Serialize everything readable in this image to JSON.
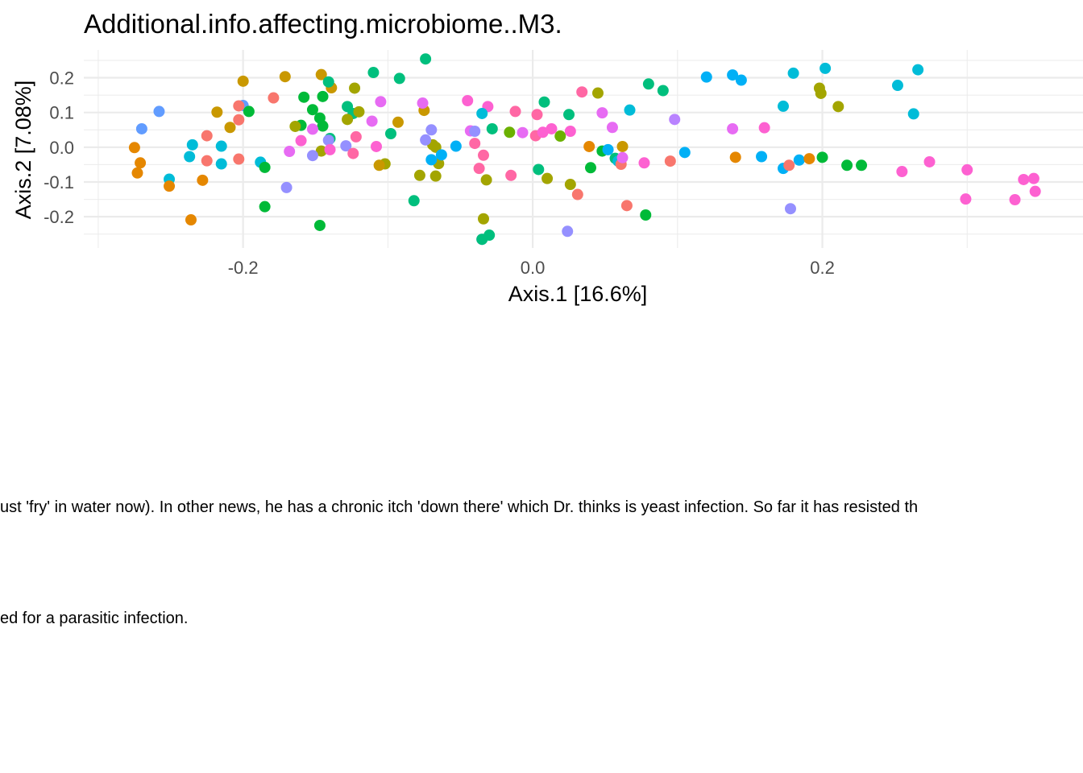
{
  "chart_data": {
    "type": "scatter",
    "title": "Additional.info.affecting.microbiome..M3.",
    "xlabel": "Axis.1 [16.6%]",
    "ylabel": "Axis.2 [7.08%]",
    "xlim": [
      -0.31,
      0.38
    ],
    "ylim": [
      -0.29,
      0.28
    ],
    "x_ticks": [
      -0.2,
      0.0,
      0.2
    ],
    "x_tick_labels": [
      "-0.2",
      "0.0",
      "0.2"
    ],
    "y_ticks": [
      -0.2,
      -0.1,
      0.0,
      0.1,
      0.2
    ],
    "y_tick_labels": [
      "-0.2",
      "-0.1",
      "0.0",
      "0.1",
      "0.2"
    ],
    "grid": true,
    "colors": [
      "#F8766D",
      "#E58700",
      "#C99800",
      "#A3A500",
      "#6BB100",
      "#00BA38",
      "#00BF7D",
      "#00C0AF",
      "#00BCD8",
      "#00B0F6",
      "#619CFF",
      "#B983FF",
      "#E76BF3",
      "#FD61D1",
      "#FF67A4"
    ],
    "points": [
      {
        "x": -0.27,
        "y": 0.053,
        "color": "#619CFF"
      },
      {
        "x": -0.258,
        "y": 0.103,
        "color": "#619CFF"
      },
      {
        "x": -0.251,
        "y": -0.092,
        "color": "#00BCD8"
      },
      {
        "x": -0.237,
        "y": -0.027,
        "color": "#00BCD8"
      },
      {
        "x": -0.235,
        "y": 0.007,
        "color": "#00BCD8"
      },
      {
        "x": -0.215,
        "y": 0.003,
        "color": "#00BCD8"
      },
      {
        "x": -0.215,
        "y": -0.048,
        "color": "#00BCD8"
      },
      {
        "x": -0.2,
        "y": 0.12,
        "color": "#619CFF"
      },
      {
        "x": -0.188,
        "y": -0.043,
        "color": "#00BCD8"
      },
      {
        "x": -0.275,
        "y": -0.001,
        "color": "#E58700"
      },
      {
        "x": -0.271,
        "y": -0.045,
        "color": "#E58700"
      },
      {
        "x": -0.273,
        "y": -0.074,
        "color": "#E58700"
      },
      {
        "x": -0.251,
        "y": -0.112,
        "color": "#E58700"
      },
      {
        "x": -0.236,
        "y": -0.209,
        "color": "#E58700"
      },
      {
        "x": -0.228,
        "y": -0.095,
        "color": "#E58700"
      },
      {
        "x": -0.225,
        "y": 0.033,
        "color": "#F8766D"
      },
      {
        "x": -0.225,
        "y": -0.039,
        "color": "#F8766D"
      },
      {
        "x": -0.203,
        "y": 0.079,
        "color": "#F8766D"
      },
      {
        "x": -0.203,
        "y": -0.034,
        "color": "#F8766D"
      },
      {
        "x": -0.203,
        "y": 0.119,
        "color": "#F8766D"
      },
      {
        "x": -0.179,
        "y": 0.142,
        "color": "#F8766D"
      },
      {
        "x": -0.218,
        "y": 0.101,
        "color": "#C99800"
      },
      {
        "x": -0.209,
        "y": 0.057,
        "color": "#C99800"
      },
      {
        "x": -0.2,
        "y": 0.19,
        "color": "#C99800"
      },
      {
        "x": -0.171,
        "y": 0.203,
        "color": "#C99800"
      },
      {
        "x": -0.146,
        "y": 0.209,
        "color": "#C99800"
      },
      {
        "x": -0.139,
        "y": 0.171,
        "color": "#C99800"
      },
      {
        "x": -0.196,
        "y": 0.103,
        "color": "#00BA38"
      },
      {
        "x": -0.185,
        "y": -0.058,
        "color": "#00BA38"
      },
      {
        "x": -0.185,
        "y": -0.171,
        "color": "#00BA38"
      },
      {
        "x": -0.16,
        "y": 0.063,
        "color": "#00BA38"
      },
      {
        "x": -0.158,
        "y": 0.144,
        "color": "#00BA38"
      },
      {
        "x": -0.152,
        "y": 0.108,
        "color": "#00BA38"
      },
      {
        "x": -0.147,
        "y": 0.084,
        "color": "#00BA38"
      },
      {
        "x": -0.145,
        "y": 0.146,
        "color": "#00BA38"
      },
      {
        "x": -0.145,
        "y": 0.061,
        "color": "#00BA38"
      },
      {
        "x": -0.147,
        "y": -0.225,
        "color": "#00BA38"
      },
      {
        "x": -0.141,
        "y": 0.188,
        "color": "#00BF7D"
      },
      {
        "x": -0.14,
        "y": 0.025,
        "color": "#00BF7D"
      },
      {
        "x": -0.128,
        "y": 0.117,
        "color": "#00BF7D"
      },
      {
        "x": -0.124,
        "y": 0.097,
        "color": "#00BF7D"
      },
      {
        "x": -0.11,
        "y": 0.215,
        "color": "#00BF7D"
      },
      {
        "x": -0.098,
        "y": 0.039,
        "color": "#00BF7D"
      },
      {
        "x": -0.092,
        "y": 0.198,
        "color": "#00BF7D"
      },
      {
        "x": -0.082,
        "y": -0.154,
        "color": "#00BF7D"
      },
      {
        "x": -0.074,
        "y": 0.254,
        "color": "#00BF7D"
      },
      {
        "x": -0.164,
        "y": 0.06,
        "color": "#A3A500"
      },
      {
        "x": -0.146,
        "y": -0.011,
        "color": "#A3A500"
      },
      {
        "x": -0.128,
        "y": 0.08,
        "color": "#A3A500"
      },
      {
        "x": -0.123,
        "y": 0.17,
        "color": "#A3A500"
      },
      {
        "x": -0.12,
        "y": 0.102,
        "color": "#A3A500"
      },
      {
        "x": -0.102,
        "y": -0.048,
        "color": "#A3A500"
      },
      {
        "x": -0.078,
        "y": -0.081,
        "color": "#A3A500"
      },
      {
        "x": -0.069,
        "y": 0.007,
        "color": "#A3A500"
      },
      {
        "x": -0.067,
        "y": -0.083,
        "color": "#A3A500"
      },
      {
        "x": -0.065,
        "y": -0.047,
        "color": "#A3A500"
      },
      {
        "x": -0.067,
        "y": 0.0,
        "color": "#A3A500"
      },
      {
        "x": -0.034,
        "y": -0.206,
        "color": "#A3A500"
      },
      {
        "x": -0.032,
        "y": -0.094,
        "color": "#A3A500"
      },
      {
        "x": -0.106,
        "y": -0.052,
        "color": "#C99800"
      },
      {
        "x": -0.093,
        "y": 0.072,
        "color": "#C99800"
      },
      {
        "x": -0.075,
        "y": 0.106,
        "color": "#C99800"
      },
      {
        "x": -0.17,
        "y": -0.116,
        "color": "#9590FF"
      },
      {
        "x": -0.141,
        "y": 0.02,
        "color": "#9590FF"
      },
      {
        "x": -0.152,
        "y": -0.024,
        "color": "#9590FF"
      },
      {
        "x": -0.129,
        "y": 0.004,
        "color": "#9590FF"
      },
      {
        "x": -0.074,
        "y": 0.021,
        "color": "#9590FF"
      },
      {
        "x": -0.07,
        "y": 0.05,
        "color": "#9590FF"
      },
      {
        "x": -0.035,
        "y": -0.265,
        "color": "#9590FF"
      },
      {
        "x": -0.168,
        "y": -0.012,
        "color": "#E76BF3"
      },
      {
        "x": -0.152,
        "y": 0.052,
        "color": "#E76BF3"
      },
      {
        "x": -0.111,
        "y": 0.075,
        "color": "#E76BF3"
      },
      {
        "x": -0.105,
        "y": 0.131,
        "color": "#E76BF3"
      },
      {
        "x": -0.076,
        "y": 0.127,
        "color": "#E76BF3"
      },
      {
        "x": -0.043,
        "y": 0.047,
        "color": "#E76BF3"
      },
      {
        "x": -0.16,
        "y": 0.019,
        "color": "#FD61D1"
      },
      {
        "x": -0.14,
        "y": -0.007,
        "color": "#FD61D1"
      },
      {
        "x": -0.108,
        "y": 0.002,
        "color": "#FD61D1"
      },
      {
        "x": -0.045,
        "y": 0.134,
        "color": "#FD61D1"
      },
      {
        "x": -0.031,
        "y": 0.117,
        "color": "#FD61D1"
      },
      {
        "x": -0.124,
        "y": -0.018,
        "color": "#FF67A4"
      },
      {
        "x": -0.122,
        "y": 0.03,
        "color": "#FF67A4"
      },
      {
        "x": -0.04,
        "y": 0.011,
        "color": "#FF67A4"
      },
      {
        "x": -0.037,
        "y": -0.061,
        "color": "#FF67A4"
      },
      {
        "x": -0.034,
        "y": -0.023,
        "color": "#FF67A4"
      },
      {
        "x": -0.07,
        "y": -0.036,
        "color": "#00B0F6"
      },
      {
        "x": -0.063,
        "y": -0.022,
        "color": "#00B0F6"
      },
      {
        "x": -0.053,
        "y": 0.003,
        "color": "#00B0F6"
      },
      {
        "x": -0.035,
        "y": 0.097,
        "color": "#00BCD8"
      },
      {
        "x": -0.028,
        "y": 0.053,
        "color": "#00BF7D"
      },
      {
        "x": -0.03,
        "y": -0.253,
        "color": "#00BF7D"
      },
      {
        "x": -0.035,
        "y": -0.265,
        "color": "#00BF7D"
      },
      {
        "x": -0.04,
        "y": 0.046,
        "color": "#9590FF"
      },
      {
        "x": -0.015,
        "y": -0.081,
        "color": "#FF67A4"
      },
      {
        "x": -0.012,
        "y": 0.103,
        "color": "#FF67A4"
      },
      {
        "x": 0.003,
        "y": 0.094,
        "color": "#FF67A4"
      },
      {
        "x": 0.002,
        "y": 0.033,
        "color": "#FF67A4"
      },
      {
        "x": 0.034,
        "y": 0.159,
        "color": "#FF67A4"
      },
      {
        "x": -0.007,
        "y": 0.042,
        "color": "#E76BF3"
      },
      {
        "x": 0.007,
        "y": 0.043,
        "color": "#FD61D1"
      },
      {
        "x": 0.013,
        "y": 0.053,
        "color": "#FD61D1"
      },
      {
        "x": 0.026,
        "y": 0.046,
        "color": "#FD61D1"
      },
      {
        "x": -0.016,
        "y": 0.043,
        "color": "#6BB100"
      },
      {
        "x": 0.019,
        "y": 0.032,
        "color": "#6BB100"
      },
      {
        "x": 0.004,
        "y": -0.064,
        "color": "#00BF7D"
      },
      {
        "x": 0.008,
        "y": 0.13,
        "color": "#00BF7D"
      },
      {
        "x": 0.025,
        "y": 0.094,
        "color": "#00BF7D"
      },
      {
        "x": 0.01,
        "y": -0.09,
        "color": "#A3A500"
      },
      {
        "x": 0.026,
        "y": -0.107,
        "color": "#A3A500"
      },
      {
        "x": 0.024,
        "y": -0.242,
        "color": "#9590FF"
      },
      {
        "x": 0.031,
        "y": -0.136,
        "color": "#F8766D"
      },
      {
        "x": 0.039,
        "y": 0.002,
        "color": "#E58700"
      },
      {
        "x": 0.04,
        "y": -0.059,
        "color": "#00BA38"
      },
      {
        "x": 0.045,
        "y": 0.156,
        "color": "#A3A500"
      },
      {
        "x": 0.048,
        "y": -0.011,
        "color": "#00BA38"
      },
      {
        "x": 0.048,
        "y": 0.099,
        "color": "#E76BF3"
      },
      {
        "x": 0.052,
        "y": -0.007,
        "color": "#00B0F6"
      },
      {
        "x": 0.055,
        "y": 0.057,
        "color": "#E76BF3"
      },
      {
        "x": 0.057,
        "y": -0.032,
        "color": "#00BF7D"
      },
      {
        "x": 0.059,
        "y": -0.04,
        "color": "#00BCD8"
      },
      {
        "x": 0.061,
        "y": -0.049,
        "color": "#F8766D"
      },
      {
        "x": 0.062,
        "y": 0.002,
        "color": "#C99800"
      },
      {
        "x": 0.062,
        "y": -0.03,
        "color": "#E76BF3"
      },
      {
        "x": 0.065,
        "y": -0.168,
        "color": "#F8766D"
      },
      {
        "x": 0.067,
        "y": 0.107,
        "color": "#00BCD8"
      },
      {
        "x": 0.077,
        "y": -0.045,
        "color": "#FD61D1"
      },
      {
        "x": 0.078,
        "y": -0.195,
        "color": "#00BA38"
      },
      {
        "x": 0.08,
        "y": 0.182,
        "color": "#00BF7D"
      },
      {
        "x": 0.09,
        "y": 0.163,
        "color": "#00BF7D"
      },
      {
        "x": 0.095,
        "y": -0.04,
        "color": "#F8766D"
      },
      {
        "x": 0.098,
        "y": 0.08,
        "color": "#B983FF"
      },
      {
        "x": 0.105,
        "y": -0.015,
        "color": "#00B0F6"
      },
      {
        "x": 0.12,
        "y": 0.202,
        "color": "#00B0F6"
      },
      {
        "x": 0.138,
        "y": 0.208,
        "color": "#00B0F6"
      },
      {
        "x": 0.144,
        "y": 0.193,
        "color": "#00B0F6"
      },
      {
        "x": 0.138,
        "y": 0.053,
        "color": "#E76BF3"
      },
      {
        "x": 0.14,
        "y": -0.029,
        "color": "#E58700"
      },
      {
        "x": 0.158,
        "y": -0.027,
        "color": "#00B0F6"
      },
      {
        "x": 0.16,
        "y": 0.056,
        "color": "#FD61D1"
      },
      {
        "x": 0.173,
        "y": 0.118,
        "color": "#00BCD8"
      },
      {
        "x": 0.173,
        "y": -0.061,
        "color": "#00B0F6"
      },
      {
        "x": 0.177,
        "y": -0.052,
        "color": "#F8766D"
      },
      {
        "x": 0.178,
        "y": -0.177,
        "color": "#9590FF"
      },
      {
        "x": 0.18,
        "y": 0.213,
        "color": "#00BCD8"
      },
      {
        "x": 0.184,
        "y": -0.037,
        "color": "#00B0F6"
      },
      {
        "x": 0.191,
        "y": -0.033,
        "color": "#E58700"
      },
      {
        "x": 0.198,
        "y": 0.17,
        "color": "#A3A500"
      },
      {
        "x": 0.199,
        "y": 0.155,
        "color": "#A3A500"
      },
      {
        "x": 0.2,
        "y": -0.029,
        "color": "#00BA38"
      },
      {
        "x": 0.202,
        "y": 0.227,
        "color": "#00BCD8"
      },
      {
        "x": 0.211,
        "y": 0.117,
        "color": "#A3A500"
      },
      {
        "x": 0.217,
        "y": -0.052,
        "color": "#00BA38"
      },
      {
        "x": 0.227,
        "y": -0.052,
        "color": "#00BA38"
      },
      {
        "x": 0.252,
        "y": 0.178,
        "color": "#00BCD8"
      },
      {
        "x": 0.255,
        "y": -0.07,
        "color": "#FD61D1"
      },
      {
        "x": 0.263,
        "y": 0.096,
        "color": "#00BCD8"
      },
      {
        "x": 0.266,
        "y": 0.223,
        "color": "#00BCD8"
      },
      {
        "x": 0.274,
        "y": -0.042,
        "color": "#FD61D1"
      },
      {
        "x": 0.3,
        "y": -0.065,
        "color": "#FD61D1"
      },
      {
        "x": 0.299,
        "y": -0.149,
        "color": "#FD61D1"
      },
      {
        "x": 0.333,
        "y": -0.151,
        "color": "#FD61D1"
      },
      {
        "x": 0.339,
        "y": -0.093,
        "color": "#FD61D1"
      },
      {
        "x": 0.346,
        "y": -0.09,
        "color": "#FD61D1"
      },
      {
        "x": 0.347,
        "y": -0.127,
        "color": "#FD61D1"
      }
    ]
  },
  "legend": {
    "entry_1": "ust 'fry' in water now). In other news, he has a chronic itch 'down there' which Dr. thinks is yeast infection. So far it has resisted th",
    "entry_2": "ed for a parasitic infection."
  }
}
